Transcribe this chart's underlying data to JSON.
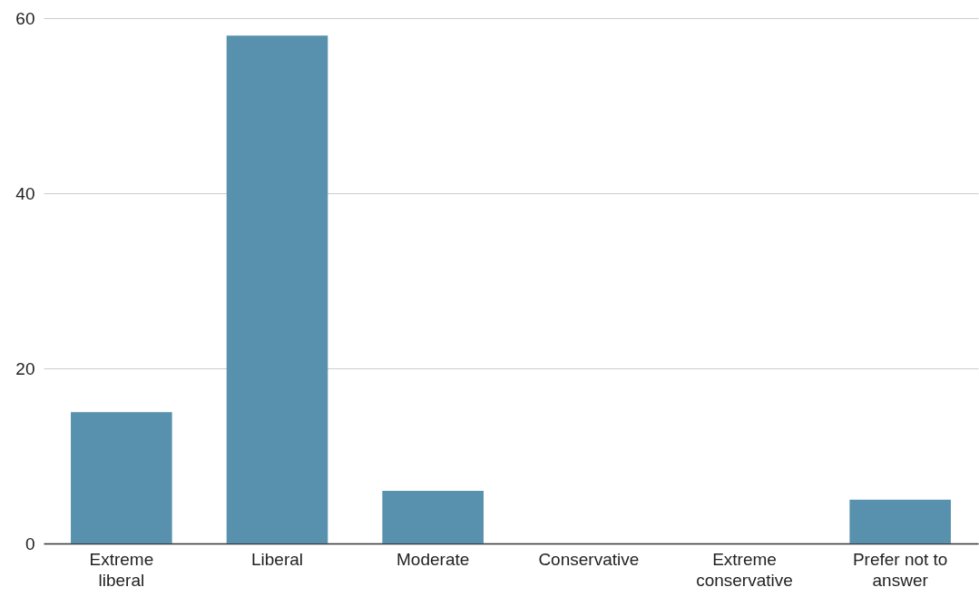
{
  "chart_data": {
    "type": "bar",
    "categories": [
      "Extreme liberal",
      "Liberal",
      "Moderate",
      "Conservative",
      "Extreme conservative",
      "Prefer not to answer"
    ],
    "values": [
      15,
      58,
      6,
      0,
      0,
      5
    ],
    "color": "#5891ad",
    "ylim": [
      0,
      60
    ],
    "yticks": [
      0,
      20,
      40,
      60
    ],
    "grid": "y"
  }
}
